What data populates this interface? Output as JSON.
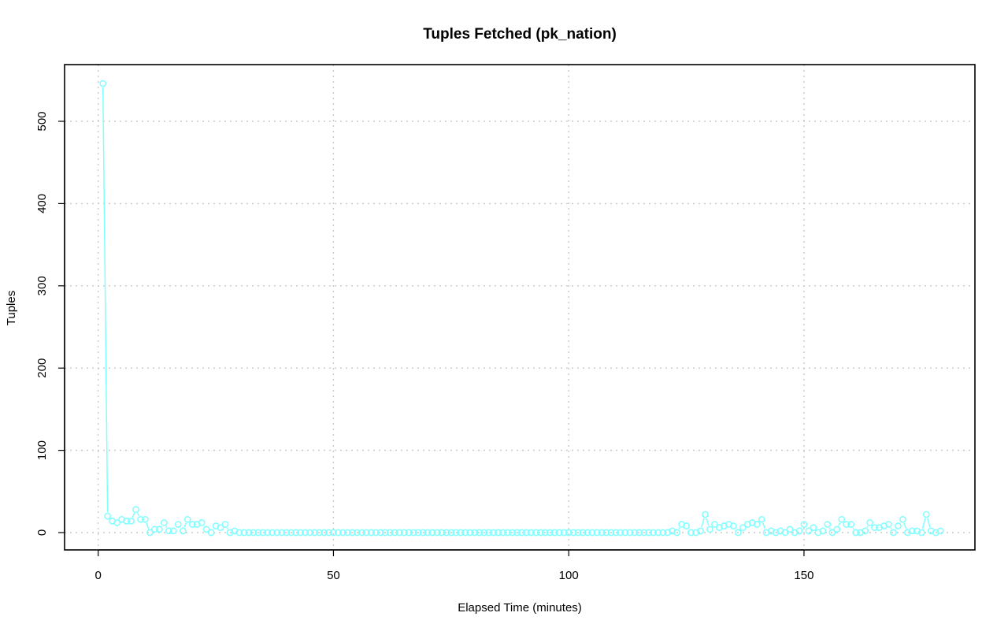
{
  "chart_data": {
    "type": "line",
    "title": "Tuples Fetched (pk_nation)",
    "xlabel": "Elapsed Time (minutes)",
    "ylabel": "Tuples",
    "xlim": [
      0,
      180
    ],
    "ylim": [
      0,
      550
    ],
    "x_ticks": [
      0,
      50,
      100,
      150
    ],
    "y_ticks": [
      0,
      100,
      200,
      300,
      400,
      500
    ],
    "grid": true,
    "legend": "none",
    "series": [
      {
        "color": "#7fffff",
        "x": [
          1,
          2,
          3,
          4,
          5,
          6,
          7,
          8,
          9,
          10,
          11,
          12,
          13,
          14,
          15,
          16,
          17,
          18,
          19,
          20,
          21,
          22,
          23,
          24,
          25,
          26,
          27,
          28,
          29,
          30,
          31,
          32,
          33,
          34,
          35,
          36,
          37,
          38,
          39,
          40,
          41,
          42,
          43,
          44,
          45,
          46,
          47,
          48,
          49,
          50,
          51,
          52,
          53,
          54,
          55,
          56,
          57,
          58,
          59,
          60,
          61,
          62,
          63,
          64,
          65,
          66,
          67,
          68,
          69,
          70,
          71,
          72,
          73,
          74,
          75,
          76,
          77,
          78,
          79,
          80,
          81,
          82,
          83,
          84,
          85,
          86,
          87,
          88,
          89,
          90,
          91,
          92,
          93,
          94,
          95,
          96,
          97,
          98,
          99,
          100,
          101,
          102,
          103,
          104,
          105,
          106,
          107,
          108,
          109,
          110,
          111,
          112,
          113,
          114,
          115,
          116,
          117,
          118,
          119,
          120,
          121,
          122,
          123,
          124,
          125,
          126,
          127,
          128,
          129,
          130,
          131,
          132,
          133,
          134,
          135,
          136,
          137,
          138,
          139,
          140,
          141,
          142,
          143,
          144,
          145,
          146,
          147,
          148,
          149,
          150,
          151,
          152,
          153,
          154,
          155,
          156,
          157,
          158,
          159,
          160,
          161,
          162,
          163,
          164,
          165,
          166,
          167,
          168,
          169,
          170,
          171,
          172,
          173,
          174,
          175,
          176,
          177,
          178,
          179
        ],
        "y": [
          546,
          20,
          14,
          12,
          16,
          14,
          14,
          28,
          16,
          16,
          0,
          4,
          4,
          12,
          2,
          2,
          10,
          2,
          16,
          10,
          10,
          12,
          4,
          0,
          8,
          6,
          10,
          0,
          2,
          0,
          0,
          0,
          0,
          0,
          0,
          0,
          0,
          0,
          0,
          0,
          0,
          0,
          0,
          0,
          0,
          0,
          0,
          0,
          0,
          0,
          0,
          0,
          0,
          0,
          0,
          0,
          0,
          0,
          0,
          0,
          0,
          0,
          0,
          0,
          0,
          0,
          0,
          0,
          0,
          0,
          0,
          0,
          0,
          0,
          0,
          0,
          0,
          0,
          0,
          0,
          0,
          0,
          0,
          0,
          0,
          0,
          0,
          0,
          0,
          0,
          0,
          0,
          0,
          0,
          0,
          0,
          0,
          0,
          0,
          0,
          0,
          0,
          0,
          0,
          0,
          0,
          0,
          0,
          0,
          0,
          0,
          0,
          0,
          0,
          0,
          0,
          0,
          0,
          0,
          0,
          0,
          2,
          0,
          10,
          8,
          0,
          0,
          2,
          22,
          4,
          10,
          6,
          8,
          10,
          8,
          0,
          6,
          10,
          12,
          10,
          16,
          0,
          2,
          0,
          2,
          0,
          4,
          0,
          2,
          10,
          2,
          6,
          0,
          2,
          10,
          0,
          4,
          16,
          10,
          10,
          0,
          0,
          2,
          12,
          6,
          6,
          8,
          10,
          0,
          8,
          16,
          0,
          2,
          2,
          0,
          22,
          2,
          0,
          2
        ]
      }
    ]
  }
}
